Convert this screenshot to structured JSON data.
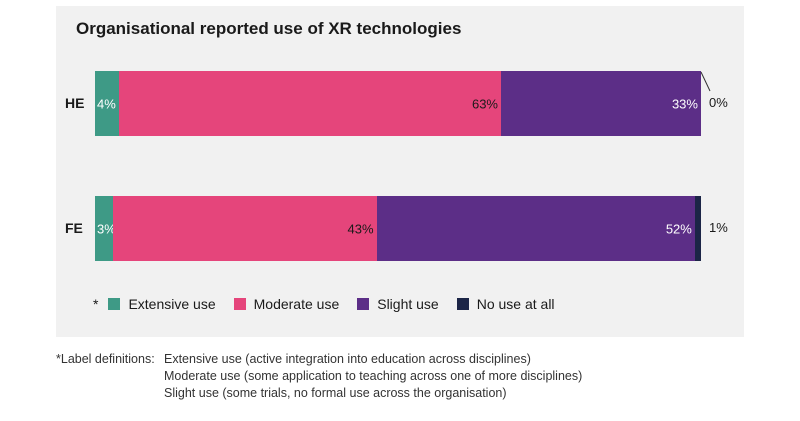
{
  "chart_data": {
    "type": "bar",
    "orientation": "horizontal",
    "stacked": true,
    "title": "Organisational reported use of XR technologies",
    "categories": [
      "HE",
      "FE"
    ],
    "series": [
      {
        "name": "Extensive use",
        "color": "#3e9a86",
        "values": [
          4,
          3
        ],
        "labels": [
          "4%",
          "3%"
        ]
      },
      {
        "name": "Moderate use",
        "color": "#e5457b",
        "values": [
          63,
          43
        ],
        "labels": [
          "63%",
          "43%"
        ]
      },
      {
        "name": "Slight use",
        "color": "#5c2e87",
        "values": [
          33,
          52
        ],
        "labels": [
          "33%",
          "52%"
        ]
      },
      {
        "name": "No use at all",
        "color": "#1c2547",
        "values": [
          0,
          1
        ],
        "labels": [
          "0%",
          "1%"
        ]
      }
    ],
    "legend_position": "bottom",
    "legend_marker": "*",
    "xlim": [
      0,
      100
    ]
  },
  "footnote": {
    "label": "*Label definitions:",
    "definitions": [
      "Extensive use (active integration into education across disciplines)",
      "Moderate use (some application to teaching across one of more disciplines)",
      "Slight use (some trials, no formal use across the organisation)"
    ]
  }
}
